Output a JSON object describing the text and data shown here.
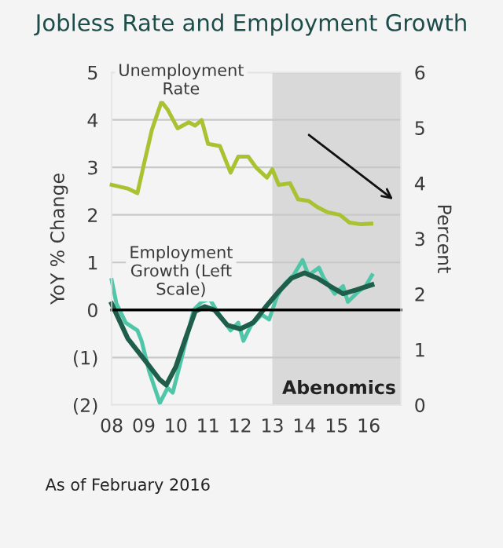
{
  "chart_data": {
    "type": "line",
    "title": "Jobless Rate and Employment Growth",
    "ylabel": "YoY % Change",
    "y2label": "Percent",
    "xlim": [
      2008,
      2017
    ],
    "xticks": [
      {
        "value": 2008,
        "label": "08"
      },
      {
        "value": 2009,
        "label": "09"
      },
      {
        "value": 2010,
        "label": "10"
      },
      {
        "value": 2011,
        "label": "11"
      },
      {
        "value": 2012,
        "label": "12"
      },
      {
        "value": 2013,
        "label": "13"
      },
      {
        "value": 2014,
        "label": "14"
      },
      {
        "value": 2015,
        "label": "15"
      },
      {
        "value": 2016,
        "label": "16"
      }
    ],
    "ylim": [
      -2,
      5
    ],
    "yticks": [
      {
        "value": -2,
        "label": "(2)"
      },
      {
        "value": -1,
        "label": "(1)"
      },
      0,
      1,
      2,
      3,
      4,
      5
    ],
    "y2lim": [
      0,
      6
    ],
    "y2ticks": [
      0,
      1,
      2,
      3,
      4,
      5,
      6
    ],
    "grid": "y",
    "legend": false,
    "line_style": "solid",
    "marker": "none",
    "series": [
      {
        "name": "Unemployment Rate",
        "color": "#a8c232",
        "axis": "y2",
        "x": [
          2008.0,
          2008.52,
          2008.8,
          2009.0,
          2009.25,
          2009.55,
          2009.74,
          2010.05,
          2010.4,
          2010.6,
          2010.8,
          2011.0,
          2011.37,
          2011.7,
          2011.94,
          2012.25,
          2012.5,
          2012.83,
          2013.0,
          2013.2,
          2013.55,
          2013.8,
          2014.13,
          2014.4,
          2014.7,
          2015.1,
          2015.4,
          2015.75,
          2016.08
        ],
        "values": [
          3.97,
          3.9,
          3.82,
          4.33,
          4.96,
          5.47,
          5.33,
          4.99,
          5.1,
          5.04,
          5.14,
          4.71,
          4.67,
          4.19,
          4.48,
          4.48,
          4.28,
          4.1,
          4.25,
          3.97,
          4.0,
          3.71,
          3.68,
          3.57,
          3.48,
          3.43,
          3.29,
          3.26,
          3.27
        ]
      },
      {
        "name": "Employment Growth (Left Scale)",
        "color": "#4fc6a8",
        "x": [
          2008.0,
          2008.15,
          2008.44,
          2008.8,
          2008.93,
          2009.17,
          2009.5,
          2009.74,
          2009.9,
          2010.15,
          2010.55,
          2010.8,
          2011.05,
          2011.3,
          2011.7,
          2011.94,
          2012.1,
          2012.34,
          2012.67,
          2012.9,
          2013.15,
          2013.4,
          2013.66,
          2013.94,
          2014.13,
          2014.45,
          2014.6,
          2014.94,
          2015.2,
          2015.35,
          2015.68,
          2015.9,
          2016.1
        ],
        "values": [
          0.63,
          0.13,
          -0.27,
          -0.43,
          -0.65,
          -1.3,
          -1.96,
          -1.64,
          -1.74,
          -1.09,
          0.0,
          0.17,
          0.23,
          -0.05,
          -0.43,
          -0.27,
          -0.65,
          -0.32,
          -0.1,
          -0.2,
          0.29,
          0.56,
          0.73,
          1.05,
          0.73,
          0.89,
          0.67,
          0.34,
          0.5,
          0.17,
          0.39,
          0.5,
          0.73
        ]
      },
      {
        "color": "#1e5e4a",
        "x": [
          2008.0,
          2008.5,
          2009.0,
          2009.5,
          2009.7,
          2010.0,
          2010.3,
          2010.6,
          2010.9,
          2011.2,
          2011.6,
          2012.0,
          2012.4,
          2012.8,
          2013.2,
          2013.6,
          2014.0,
          2014.4,
          2014.8,
          2015.2,
          2015.6,
          2016.1
        ],
        "values": [
          0.13,
          -0.6,
          -1.03,
          -1.47,
          -1.58,
          -1.19,
          -0.6,
          -0.03,
          0.07,
          0.0,
          -0.32,
          -0.4,
          -0.27,
          0.07,
          0.39,
          0.67,
          0.78,
          0.67,
          0.5,
          0.34,
          0.42,
          0.53
        ]
      }
    ],
    "ref_lines": [
      {
        "axis": "y",
        "value": 0,
        "color": "#000000"
      }
    ],
    "bands": [
      {
        "axis": "x",
        "from": 2013,
        "to": 2017,
        "label": "Abenomics",
        "color": "#d9d9d9"
      }
    ],
    "annotations": [
      "As of February 2016"
    ]
  }
}
